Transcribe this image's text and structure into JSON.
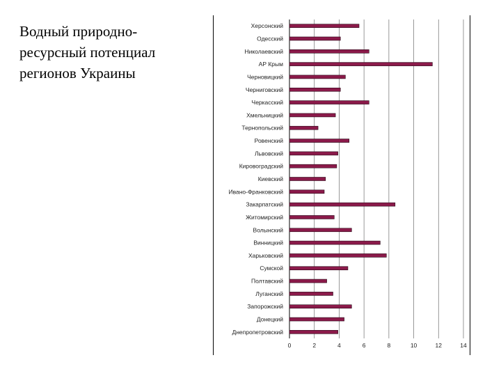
{
  "slide": {
    "title": "Водный природно-ресурсный потенциал регионов Украины"
  },
  "chart_data": {
    "type": "bar",
    "orientation": "horizontal",
    "categories": [
      "Херсонский",
      "Одесский",
      "Николаевский",
      "АР Крым",
      "Черновицкий",
      "Черниговский",
      "Черкасский",
      "Хмельницкий",
      "Тернопольский",
      "Ровенский",
      "Львовский",
      "Кировоградский",
      "Киевский",
      "Ивано-Франковский",
      "Закарпатский",
      "Житомирский",
      "Волынский",
      "Винницкий",
      "Харьковский",
      "Сумской",
      "Полтавский",
      "Луганский",
      "Запорожский",
      "Донецкий",
      "Днепропетровский"
    ],
    "values": [
      5.6,
      4.1,
      6.4,
      11.5,
      4.5,
      4.1,
      6.4,
      3.7,
      2.3,
      4.8,
      3.9,
      3.8,
      2.9,
      2.8,
      8.5,
      3.6,
      5.0,
      7.3,
      7.8,
      4.7,
      3.0,
      3.5,
      5.0,
      4.4,
      3.9
    ],
    "xlim": [
      0,
      14
    ],
    "xticks": [
      0,
      2,
      4,
      6,
      8,
      10,
      12,
      14
    ],
    "title": "",
    "xlabel": "",
    "ylabel": "",
    "grid": "vertical",
    "legend": "none",
    "bar_color": "#8b1a4a",
    "bar_edge_color": "#2a0a18",
    "grid_color": "#7f7f7f"
  }
}
